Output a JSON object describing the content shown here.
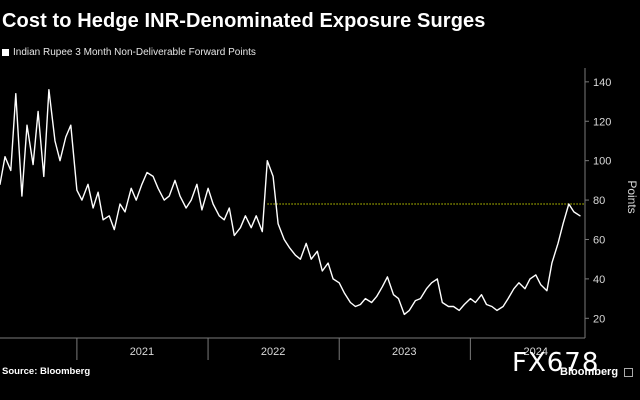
{
  "chart_data": {
    "type": "line",
    "title": "Cost to Hedge INR-Denominated Exposure Surges",
    "series": [
      {
        "name": "Indian Rupee 3 Month Non-Deliverable Forward Points",
        "color": "#ffffff",
        "x": [
          "2020-06-01",
          "2020-06-15",
          "2020-07-01",
          "2020-07-15",
          "2020-08-01",
          "2020-08-15",
          "2020-09-01",
          "2020-09-15",
          "2020-10-01",
          "2020-10-15",
          "2020-11-01",
          "2020-11-15",
          "2020-12-01",
          "2020-12-15",
          "2021-01-01",
          "2021-01-15",
          "2021-02-01",
          "2021-02-15",
          "2021-03-01",
          "2021-03-15",
          "2021-04-01",
          "2021-04-15",
          "2021-05-01",
          "2021-05-15",
          "2021-06-01",
          "2021-06-15",
          "2021-07-01",
          "2021-07-15",
          "2021-08-01",
          "2021-08-15",
          "2021-09-01",
          "2021-09-15",
          "2021-10-01",
          "2021-10-15",
          "2021-11-01",
          "2021-11-15",
          "2021-12-01",
          "2021-12-15",
          "2022-01-01",
          "2022-01-15",
          "2022-02-01",
          "2022-02-15",
          "2022-03-01",
          "2022-03-15",
          "2022-04-01",
          "2022-04-15",
          "2022-05-01",
          "2022-05-15",
          "2022-06-01",
          "2022-06-15",
          "2022-07-01",
          "2022-07-15",
          "2022-08-01",
          "2022-08-15",
          "2022-09-01",
          "2022-09-15",
          "2022-10-01",
          "2022-10-15",
          "2022-11-01",
          "2022-11-15",
          "2022-12-01",
          "2022-12-15",
          "2023-01-01",
          "2023-01-15",
          "2023-02-01",
          "2023-02-15",
          "2023-03-01",
          "2023-03-15",
          "2023-04-01",
          "2023-04-15",
          "2023-05-01",
          "2023-05-15",
          "2023-06-01",
          "2023-06-15",
          "2023-07-01",
          "2023-07-15",
          "2023-08-01",
          "2023-08-15",
          "2023-09-01",
          "2023-09-15",
          "2023-10-01",
          "2023-10-15",
          "2023-11-01",
          "2023-11-15",
          "2023-12-01",
          "2023-12-15",
          "2024-01-01",
          "2024-01-15",
          "2024-02-01",
          "2024-02-15",
          "2024-03-01",
          "2024-03-15",
          "2024-04-01",
          "2024-04-15",
          "2024-05-01",
          "2024-05-15",
          "2024-06-01",
          "2024-06-15",
          "2024-07-01",
          "2024-07-15",
          "2024-08-01",
          "2024-08-15",
          "2024-09-01",
          "2024-09-15",
          "2024-10-01",
          "2024-10-15",
          "2024-11-01"
        ],
        "values": [
          88,
          102,
          95,
          134,
          82,
          118,
          98,
          125,
          92,
          136,
          110,
          100,
          112,
          118,
          85,
          80,
          88,
          76,
          84,
          70,
          72,
          65,
          78,
          74,
          86,
          80,
          88,
          94,
          92,
          86,
          80,
          82,
          90,
          82,
          76,
          80,
          88,
          75,
          86,
          78,
          72,
          70,
          76,
          62,
          66,
          72,
          66,
          72,
          64,
          100,
          92,
          68,
          60,
          56,
          52,
          50,
          58,
          50,
          54,
          44,
          48,
          40,
          38,
          33,
          28,
          26,
          27,
          30,
          28,
          31,
          36,
          41,
          32,
          30,
          22,
          24,
          29,
          30,
          35,
          38,
          40,
          28,
          26,
          26,
          24,
          27,
          30,
          28,
          32,
          27,
          26,
          24,
          26,
          30,
          35,
          38,
          35,
          40,
          42,
          37,
          34,
          48,
          58,
          68,
          78,
          74,
          72
        ]
      }
    ],
    "reference_line": {
      "value": 78,
      "color": "#c8d400"
    },
    "x_ticks": [
      {
        "label": "2021",
        "date": "2021-07-01"
      },
      {
        "label": "2022",
        "date": "2022-07-01"
      },
      {
        "label": "2023",
        "date": "2023-07-01"
      },
      {
        "label": "2024",
        "date": "2024-07-01"
      }
    ],
    "y_ticks": [
      20,
      40,
      60,
      80,
      100,
      120,
      140
    ],
    "ylabel": "Points",
    "xlabel": "",
    "ylim": [
      10,
      145
    ],
    "xlim": [
      "2020-06-01",
      "2024-11-15"
    ],
    "grid": false,
    "legend_position": "top-left",
    "axis_side": "right"
  },
  "source": "Source: Bloomberg",
  "brand": "Bloomberg",
  "watermark": "FX678",
  "colors": {
    "background": "#000000",
    "axis": "#7a7a7a",
    "text": "#ffffff"
  }
}
